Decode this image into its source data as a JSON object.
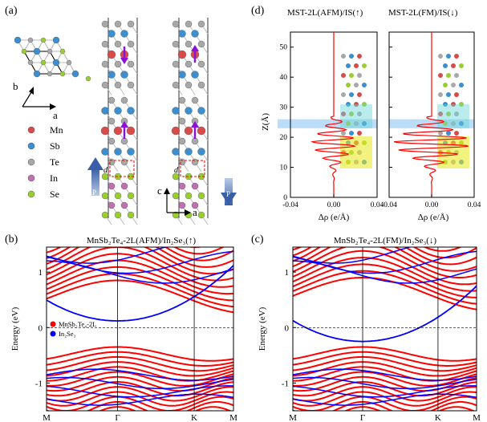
{
  "panels": {
    "a": {
      "label": "(a)",
      "axes_topview": {
        "b": "b",
        "a": "a"
      },
      "axes_side": {
        "c": "c",
        "a": "a"
      },
      "polarization_label": "P",
      "distance_label": "d",
      "legend": [
        {
          "name": "Mn",
          "color": "#d94b4b"
        },
        {
          "name": "Sb",
          "color": "#3b8ed0"
        },
        {
          "name": "Te",
          "color": "#a8a8a8"
        },
        {
          "name": "In",
          "color": "#c070b0"
        },
        {
          "name": "Se",
          "color": "#9acd32"
        }
      ]
    },
    "b": {
      "label": "(b)",
      "title": "MnSb₂Te₄-2L(AFM)/In₂Se₃(↑)",
      "legend": [
        {
          "name": "MnSb₂Te₄-2L",
          "color": "#ff0000"
        },
        {
          "name": "In₂Se₃",
          "color": "#0000ff"
        }
      ]
    },
    "c": {
      "label": "(c)",
      "title": "MnSb₂Te₄-2L(FM)/In₂Se₃(↓)"
    },
    "d": {
      "label": "(d)",
      "titles": [
        "MST-2L(AFM)/IS(↑)",
        "MST-2L(FM)/IS(↓)"
      ],
      "ylabel": "Z(Å)",
      "xlabel": "Δρ (e/Å)",
      "yticks": [
        "0",
        "10",
        "20",
        "30",
        "40",
        "50"
      ],
      "xticks": [
        "-0.04",
        "0.00",
        "0.04"
      ]
    }
  },
  "band_axes": {
    "ylabel": "Energy (eV)",
    "yticks": [
      "-1",
      "0",
      "1"
    ],
    "kpoints": [
      "M",
      "Γ",
      "K",
      "M"
    ]
  },
  "colors": {
    "mst": "#ff0000",
    "is": "#0000ff",
    "band_highlight": "#aad4f5"
  }
}
